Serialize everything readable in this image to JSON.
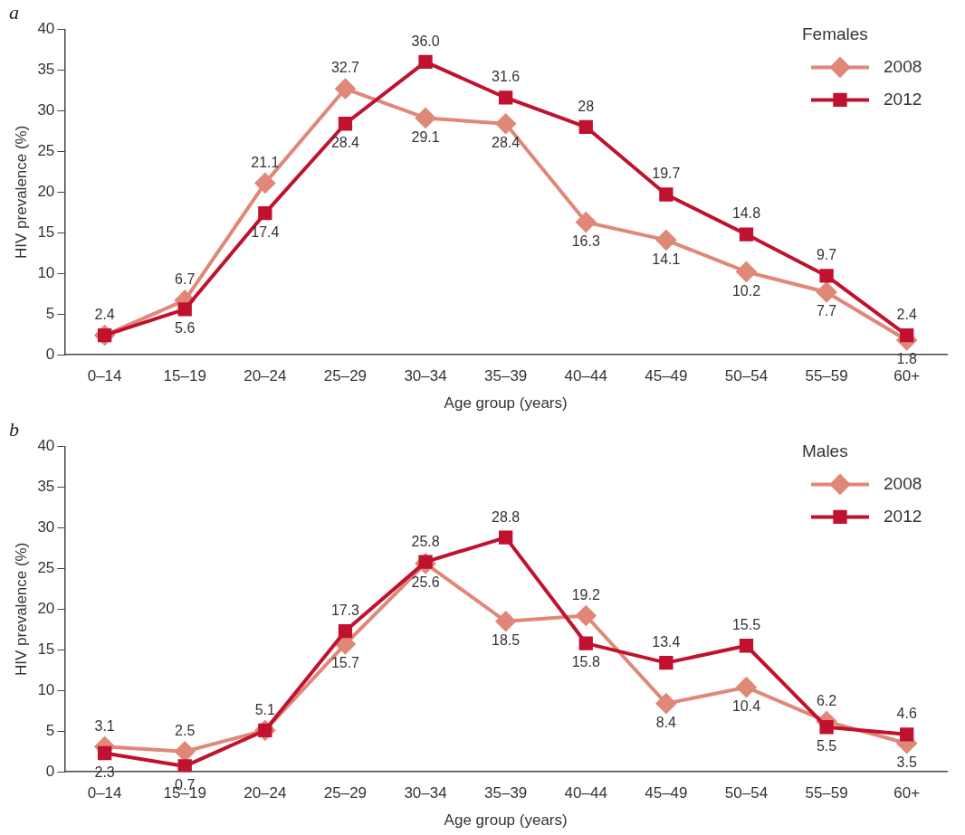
{
  "chart_data": [
    {
      "type": "line",
      "title": "a",
      "xlabel": "Age group (years)",
      "ylabel": "HIV prevalence (%)",
      "legend_title": "Females",
      "legend": "top right",
      "grid": false,
      "ylim": [
        0,
        40
      ],
      "yticks": [
        0,
        5,
        10,
        15,
        20,
        25,
        30,
        35,
        40
      ],
      "categories": [
        "0–14",
        "15–19",
        "20–24",
        "25–29",
        "30–34",
        "35–39",
        "40–44",
        "45–49",
        "50–54",
        "55–59",
        "60+"
      ],
      "series": [
        {
          "name": "2008",
          "color": "#e08878",
          "marker": "diamond",
          "values": [
            2.4,
            6.7,
            21.1,
            32.7,
            29.1,
            28.4,
            16.3,
            14.1,
            10.2,
            7.7,
            1.8
          ],
          "value_labels": [
            null,
            "6.7",
            "21.1",
            "32.7",
            "29.1",
            "28.4",
            "16.3",
            "14.1",
            "10.2",
            "7.7",
            "1.8"
          ]
        },
        {
          "name": "2012",
          "color": "#c0122f",
          "marker": "square",
          "values": [
            2.4,
            5.6,
            17.4,
            28.4,
            36.0,
            31.6,
            28,
            19.7,
            14.8,
            9.7,
            2.4
          ],
          "value_labels": [
            "2.4",
            "5.6",
            "17.4",
            "28.4",
            "36.0",
            "31.6",
            "28",
            "19.7",
            "14.8",
            "9.7",
            "2.4"
          ]
        }
      ]
    },
    {
      "type": "line",
      "title": "b",
      "xlabel": "Age group (years)",
      "ylabel": "HIV prevalence (%)",
      "legend_title": "Males",
      "legend": "top right",
      "grid": false,
      "ylim": [
        0,
        40
      ],
      "yticks": [
        0,
        5,
        10,
        15,
        20,
        25,
        30,
        35,
        40
      ],
      "categories": [
        "0–14",
        "15–19",
        "20–24",
        "25–29",
        "30–34",
        "35–39",
        "40–44",
        "45–49",
        "50–54",
        "55–59",
        "60+"
      ],
      "series": [
        {
          "name": "2008",
          "color": "#e08878",
          "marker": "diamond",
          "values": [
            3.1,
            2.5,
            5.1,
            15.7,
            25.6,
            18.5,
            19.2,
            8.4,
            10.4,
            6.2,
            3.5
          ],
          "value_labels": [
            "3.1",
            "2.5",
            "5.1",
            "15.7",
            "25.6",
            "18.5",
            "19.2",
            "8.4",
            "10.4",
            "6.2",
            "3.5"
          ]
        },
        {
          "name": "2012",
          "color": "#c0122f",
          "marker": "square",
          "values": [
            2.3,
            0.7,
            5.1,
            17.3,
            25.8,
            28.8,
            15.8,
            13.4,
            15.5,
            5.5,
            4.6
          ],
          "value_labels": [
            "2.3",
            "0.7",
            null,
            "17.3",
            "25.8",
            "28.8",
            "15.8",
            "13.4",
            "15.5",
            "5.5",
            "4.6"
          ]
        }
      ]
    }
  ]
}
